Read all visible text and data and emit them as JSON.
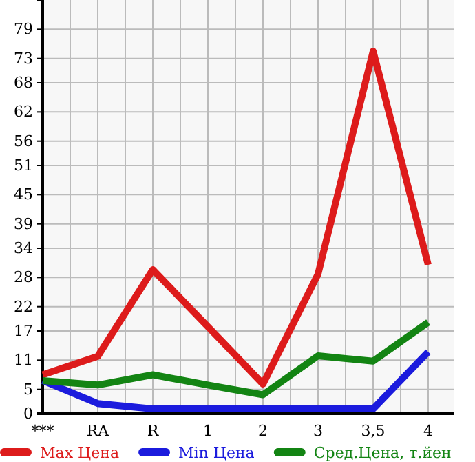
{
  "chart_data": {
    "type": "line",
    "categories": [
      "***",
      "RA",
      "R",
      "1",
      "2",
      "3",
      "3,5",
      "4"
    ],
    "series": [
      {
        "name": "Max Цена",
        "color": "#dd1b1b",
        "values": [
          8,
          11.8,
          29.6,
          17.9,
          6.1,
          28.7,
          74.5,
          30.6
        ]
      },
      {
        "name": "Min Цена",
        "color": "#1b1bdd",
        "values": [
          6.8,
          2.1,
          1,
          1,
          1,
          1,
          1,
          12.7
        ]
      },
      {
        "name": "Сред.Цена, т.йен",
        "color": "#138413",
        "values": [
          6.8,
          5.9,
          8,
          5.9,
          3.9,
          11.9,
          10.8,
          18.8
        ]
      }
    ],
    "ylim": [
      0,
      85
    ],
    "yticks": [
      0,
      5,
      11,
      17,
      22,
      28,
      34,
      39,
      45,
      51,
      56,
      62,
      68,
      73,
      79
    ],
    "grid": true,
    "legend": "bottom",
    "marker": "none",
    "line_style": "solid"
  }
}
